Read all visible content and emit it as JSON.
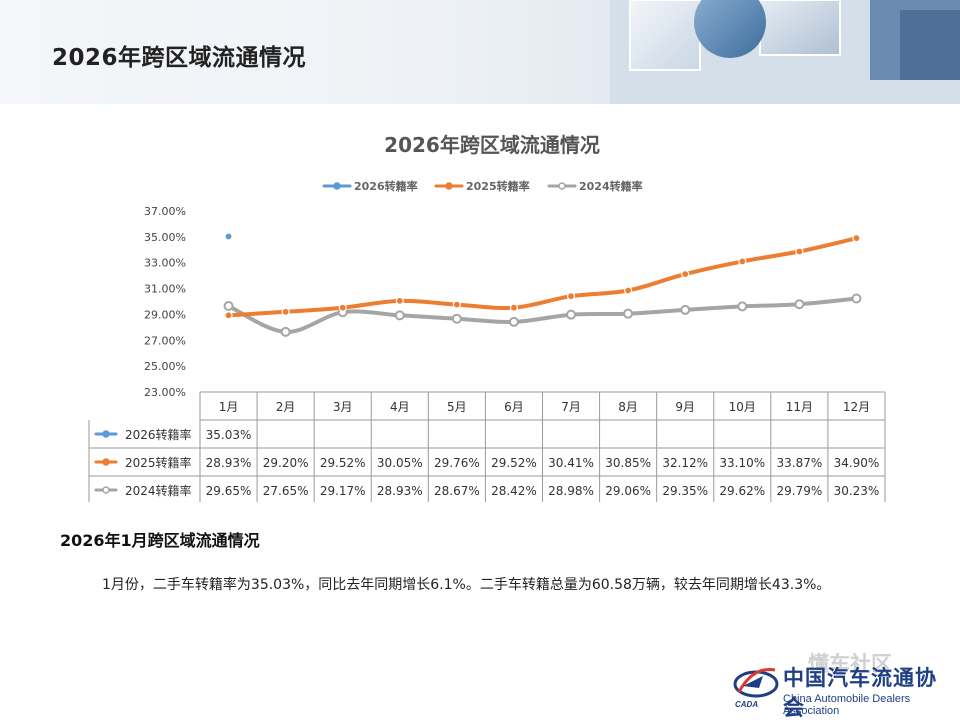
{
  "page": {
    "title": "2026年跨区域流通情况",
    "section_heading": "2026年1月跨区域流通情况",
    "body_text": "1月份，二手车转籍率为35.03%，同比去年同期增长6.1%。二手车转籍总量为60.58万辆，较去年同期增长43.3%。"
  },
  "logo": {
    "name_cn": "中国汽车流通协会",
    "name_en": "China Automobile Dealers Association",
    "abbr": "CADA",
    "watermark": "懂车社区"
  },
  "chart_data": {
    "type": "line",
    "title": "2026年跨区域流通情况",
    "categories": [
      "1月",
      "2月",
      "3月",
      "4月",
      "5月",
      "6月",
      "7月",
      "8月",
      "9月",
      "10月",
      "11月",
      "12月"
    ],
    "y_ticks": [
      "37.00%",
      "35.00%",
      "33.00%",
      "31.00%",
      "29.00%",
      "27.00%",
      "25.00%",
      "23.00%"
    ],
    "ylim": [
      23,
      37
    ],
    "legend_position": "top",
    "grid": false,
    "data_table": true,
    "series": [
      {
        "name": "2026转籍率",
        "color": "#5b9bd5",
        "values": [
          35.03,
          null,
          null,
          null,
          null,
          null,
          null,
          null,
          null,
          null,
          null,
          null
        ],
        "labels": [
          "35.03%",
          "",
          "",
          "",
          "",
          "",
          "",
          "",
          "",
          "",
          "",
          ""
        ]
      },
      {
        "name": "2025转籍率",
        "color": "#ed7d31",
        "values": [
          28.93,
          29.2,
          29.52,
          30.05,
          29.76,
          29.52,
          30.41,
          30.85,
          32.12,
          33.1,
          33.87,
          34.9
        ],
        "labels": [
          "28.93%",
          "29.20%",
          "29.52%",
          "30.05%",
          "29.76%",
          "29.52%",
          "30.41%",
          "30.85%",
          "32.12%",
          "33.10%",
          "33.87%",
          "34.90%"
        ]
      },
      {
        "name": "2024转籍率",
        "color": "#a5a5a5",
        "values": [
          29.65,
          27.65,
          29.17,
          28.93,
          28.67,
          28.42,
          28.98,
          29.06,
          29.35,
          29.62,
          29.79,
          30.23
        ],
        "labels": [
          "29.65%",
          "27.65%",
          "29.17%",
          "28.93%",
          "28.67%",
          "28.42%",
          "28.98%",
          "29.06%",
          "29.35%",
          "29.62%",
          "29.79%",
          "30.23%"
        ]
      }
    ]
  }
}
